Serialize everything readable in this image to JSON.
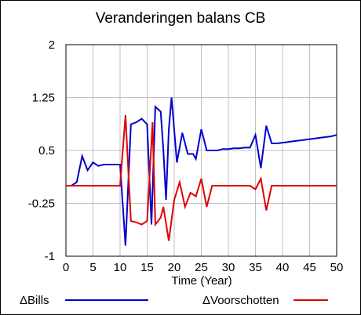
{
  "chart_data": {
    "type": "line",
    "title": "Veranderingen balans CB",
    "xlabel": "Time (Year)",
    "ylabel": "",
    "xlim": [
      0,
      50
    ],
    "ylim": [
      -1,
      2
    ],
    "x_ticks": [
      "0",
      "5",
      "10",
      "15",
      "20",
      "25",
      "30",
      "35",
      "40",
      "45",
      "50"
    ],
    "x_tick_values": [
      0,
      5,
      10,
      15,
      20,
      25,
      30,
      35,
      40,
      45,
      50
    ],
    "y_ticks": [
      "2",
      "1.25",
      "0.5",
      "-0.25",
      "-1"
    ],
    "y_tick_values": [
      2,
      1.25,
      0.5,
      -0.25,
      -1
    ],
    "grid": true,
    "legend_position": "bottom",
    "series": [
      {
        "name": "ΔBills",
        "color": "#0000cc",
        "points": [
          [
            0,
            0.0
          ],
          [
            1,
            0.0
          ],
          [
            2,
            0.05
          ],
          [
            3,
            0.42
          ],
          [
            4,
            0.22
          ],
          [
            5,
            0.33
          ],
          [
            6,
            0.28
          ],
          [
            7,
            0.3
          ],
          [
            8,
            0.3
          ],
          [
            9,
            0.3
          ],
          [
            10,
            0.3
          ],
          [
            11,
            -0.85
          ],
          [
            12,
            0.87
          ],
          [
            13,
            0.9
          ],
          [
            14,
            0.95
          ],
          [
            15,
            0.87
          ],
          [
            15.8,
            -0.55
          ],
          [
            16.5,
            1.12
          ],
          [
            17.5,
            1.05
          ],
          [
            18,
            0.5
          ],
          [
            18.5,
            -0.2
          ],
          [
            19,
            0.8
          ],
          [
            19.5,
            1.25
          ],
          [
            20.5,
            0.33
          ],
          [
            21.5,
            0.75
          ],
          [
            22.5,
            0.45
          ],
          [
            23.5,
            0.45
          ],
          [
            24,
            0.38
          ],
          [
            25,
            0.8
          ],
          [
            26,
            0.5
          ],
          [
            27,
            0.5
          ],
          [
            28,
            0.5
          ],
          [
            29,
            0.52
          ],
          [
            30,
            0.52
          ],
          [
            31,
            0.53
          ],
          [
            32,
            0.53
          ],
          [
            33,
            0.54
          ],
          [
            34,
            0.54
          ],
          [
            35,
            0.72
          ],
          [
            36,
            0.25
          ],
          [
            37,
            0.85
          ],
          [
            38,
            0.6
          ],
          [
            39,
            0.6
          ],
          [
            40,
            0.61
          ],
          [
            41,
            0.62
          ],
          [
            42,
            0.63
          ],
          [
            43,
            0.64
          ],
          [
            44,
            0.65
          ],
          [
            45,
            0.66
          ],
          [
            46,
            0.67
          ],
          [
            47,
            0.68
          ],
          [
            48,
            0.69
          ],
          [
            49,
            0.7
          ],
          [
            50,
            0.72
          ]
        ]
      },
      {
        "name": "ΔVoorschotten",
        "color": "#e00000",
        "points": [
          [
            0,
            0.0
          ],
          [
            1,
            0.0
          ],
          [
            2,
            0.0
          ],
          [
            3,
            0.0
          ],
          [
            4,
            0.0
          ],
          [
            5,
            0.0
          ],
          [
            6,
            0.0
          ],
          [
            7,
            0.0
          ],
          [
            8,
            0.0
          ],
          [
            9,
            0.0
          ],
          [
            10,
            0.0
          ],
          [
            11,
            1.0
          ],
          [
            12,
            -0.5
          ],
          [
            13,
            -0.52
          ],
          [
            14,
            -0.55
          ],
          [
            15,
            -0.5
          ],
          [
            16,
            0.9
          ],
          [
            16.5,
            -0.55
          ],
          [
            17.5,
            -0.45
          ],
          [
            18,
            -0.3
          ],
          [
            19,
            -0.78
          ],
          [
            20,
            -0.2
          ],
          [
            21,
            0.05
          ],
          [
            22,
            -0.3
          ],
          [
            23,
            -0.1
          ],
          [
            24,
            -0.15
          ],
          [
            25,
            0.1
          ],
          [
            26,
            -0.3
          ],
          [
            27,
            0.0
          ],
          [
            28,
            0.0
          ],
          [
            29,
            0.0
          ],
          [
            30,
            0.0
          ],
          [
            31,
            0.0
          ],
          [
            32,
            0.0
          ],
          [
            33,
            0.0
          ],
          [
            34,
            0.0
          ],
          [
            35,
            -0.05
          ],
          [
            36,
            0.1
          ],
          [
            37,
            -0.35
          ],
          [
            38,
            0.0
          ],
          [
            39,
            0.0
          ],
          [
            40,
            0.0
          ],
          [
            41,
            0.0
          ],
          [
            42,
            0.0
          ],
          [
            43,
            0.0
          ],
          [
            44,
            0.0
          ],
          [
            45,
            0.0
          ],
          [
            46,
            0.0
          ],
          [
            47,
            0.0
          ],
          [
            48,
            0.0
          ],
          [
            49,
            0.0
          ],
          [
            50,
            0.0
          ]
        ]
      }
    ]
  }
}
